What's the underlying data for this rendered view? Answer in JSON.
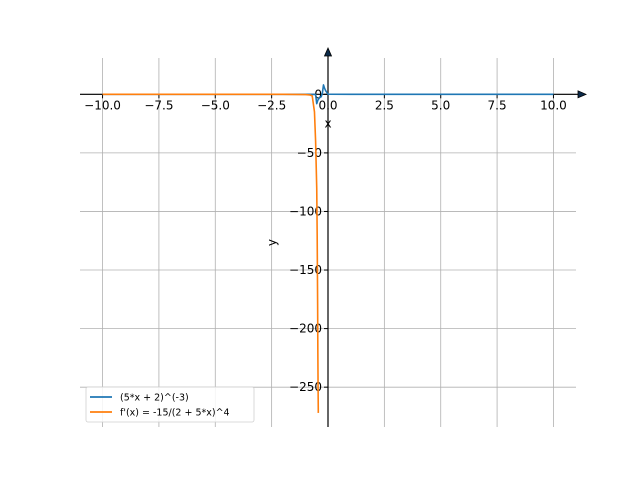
{
  "chart_data": {
    "type": "line",
    "title": "",
    "xlabel": "x",
    "ylabel": "y",
    "xlim": [
      -11,
      11
    ],
    "ylim": [
      -284,
      31
    ],
    "grid": true,
    "legend_position": "lower-left",
    "x_ticks": [
      -10.0,
      -7.5,
      -5.0,
      -2.5,
      0.0,
      2.5,
      5.0,
      7.5,
      10.0
    ],
    "x_tick_labels": [
      "−10.0",
      "−7.5",
      "−5.0",
      "−2.5",
      "0.0",
      "2.5",
      "5.0",
      "7.5",
      "10.0"
    ],
    "y_ticks": [
      0,
      -50,
      -100,
      -150,
      -200,
      -250
    ],
    "y_tick_labels": [
      "0",
      "−50",
      "−100",
      "−150",
      "−200",
      "−250"
    ],
    "series": [
      {
        "name": "(5*x + 2)^(-3)",
        "color": "#1f77b4",
        "x": [
          -10,
          -5,
          -2,
          -1,
          -0.7,
          -0.6,
          -0.55,
          -0.5,
          -0.45,
          -0.38,
          -0.3,
          -0.25,
          -0.2,
          -0.15,
          -0.1,
          0,
          1,
          2.5,
          5,
          10
        ],
        "y": [
          -0.0001,
          -0.0006,
          -0.0058,
          -0.037,
          -0.0878,
          -0.125,
          -0.152,
          -8,
          -5,
          -3,
          -2,
          1,
          8,
          5,
          3,
          0.125,
          0.003,
          0.0006,
          0.0001,
          0
        ]
      },
      {
        "name": "f'(x) = -15/(2 + 5*x)^4",
        "color": "#ff7f0e",
        "x": [
          -10,
          -5,
          -2,
          -1,
          -0.8,
          -0.7,
          -0.6,
          -0.55,
          -0.5,
          -0.48,
          -0.46,
          -0.45,
          -0.44,
          -0.43
        ],
        "y": [
          -0.0002,
          -0.0029,
          -0.0366,
          -0.185,
          -0.5859,
          -1.3,
          -15,
          -40,
          -80,
          -120,
          -180,
          -220,
          -250,
          -272
        ]
      }
    ]
  }
}
